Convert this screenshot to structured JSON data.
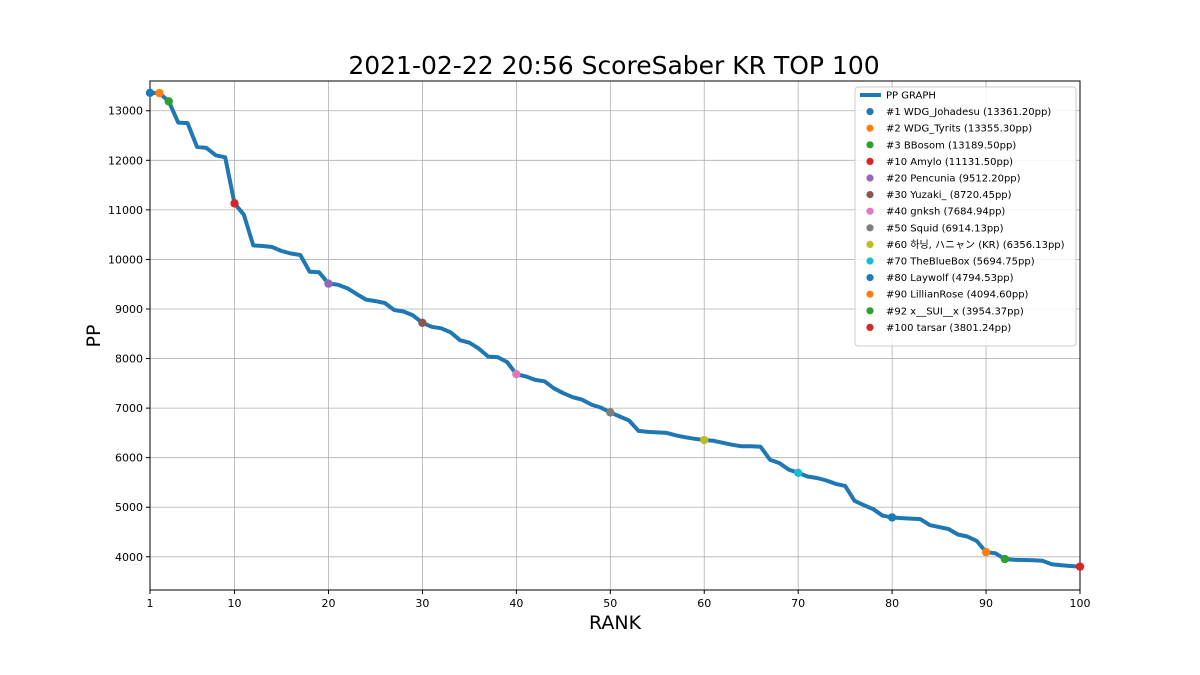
{
  "chart_data": {
    "type": "line",
    "title": "2021-02-22 20:56 ScoreSaber KR TOP 100",
    "xlabel": "RANK",
    "ylabel": "PP",
    "xlim": [
      1,
      100
    ],
    "ylim": [
      3330,
      13600
    ],
    "x_ticks": [
      1,
      10,
      20,
      30,
      40,
      50,
      60,
      70,
      80,
      90,
      100
    ],
    "y_ticks": [
      4000,
      5000,
      6000,
      7000,
      8000,
      9000,
      10000,
      11000,
      12000,
      13000
    ],
    "grid": true,
    "legend_position": "top-right",
    "series": [
      {
        "name": "PP GRAPH",
        "color": "#1f77b4",
        "x": [
          1,
          2,
          3,
          4,
          5,
          6,
          7,
          8,
          9,
          10,
          11,
          12,
          13,
          14,
          15,
          16,
          17,
          18,
          19,
          20,
          21,
          22,
          23,
          24,
          25,
          26,
          27,
          28,
          29,
          30,
          31,
          32,
          33,
          34,
          35,
          36,
          37,
          38,
          39,
          40,
          41,
          42,
          43,
          44,
          45,
          46,
          47,
          48,
          49,
          50,
          51,
          52,
          53,
          54,
          55,
          56,
          57,
          58,
          59,
          60,
          61,
          62,
          63,
          64,
          65,
          66,
          67,
          68,
          69,
          70,
          71,
          72,
          73,
          74,
          75,
          76,
          77,
          78,
          79,
          80,
          81,
          82,
          83,
          84,
          85,
          86,
          87,
          88,
          89,
          90,
          91,
          92,
          93,
          94,
          95,
          96,
          97,
          98,
          99,
          100
        ],
        "y": [
          13361.2,
          13355.3,
          13189.5,
          12760,
          12750,
          12270,
          12250,
          12100,
          12060,
          11131.5,
          10900,
          10280,
          10270,
          10250,
          10170,
          10120,
          10090,
          9750,
          9740,
          9512.2,
          9490,
          9420,
          9300,
          9190,
          9160,
          9120,
          8980,
          8950,
          8870,
          8720.45,
          8640,
          8610,
          8530,
          8370,
          8320,
          8200,
          8040,
          8030,
          7930,
          7684.94,
          7640,
          7570,
          7540,
          7400,
          7300,
          7220,
          7170,
          7070,
          7010,
          6914.13,
          6830,
          6750,
          6540,
          6520,
          6510,
          6500,
          6450,
          6410,
          6380,
          6356.13,
          6340,
          6300,
          6260,
          6230,
          6230,
          6220,
          5960,
          5890,
          5760,
          5694.75,
          5620,
          5590,
          5540,
          5470,
          5430,
          5130,
          5040,
          4960,
          4830,
          4794.53,
          4780,
          4770,
          4760,
          4640,
          4600,
          4560,
          4450,
          4410,
          4320,
          4094.6,
          4070,
          3954.37,
          3940,
          3935,
          3930,
          3920,
          3850,
          3830,
          3815,
          3801.24
        ]
      }
    ],
    "highlights": [
      {
        "label": "#1 WDG_Johadesu (13361.20pp)",
        "x": 1,
        "y": 13361.2,
        "color": "#1f77b4"
      },
      {
        "label": "#2 WDG_Tyrits (13355.30pp)",
        "x": 2,
        "y": 13355.3,
        "color": "#ff7f0e"
      },
      {
        "label": "#3 BBosom (13189.50pp)",
        "x": 3,
        "y": 13189.5,
        "color": "#2ca02c"
      },
      {
        "label": "#10 Amylo (11131.50pp)",
        "x": 10,
        "y": 11131.5,
        "color": "#d62728"
      },
      {
        "label": "#20 Pencunia (9512.20pp)",
        "x": 20,
        "y": 9512.2,
        "color": "#9467bd"
      },
      {
        "label": "#30 Yuzaki_ (8720.45pp)",
        "x": 30,
        "y": 8720.45,
        "color": "#8c564b"
      },
      {
        "label": "#40 gnksh (7684.94pp)",
        "x": 40,
        "y": 7684.94,
        "color": "#e377c2"
      },
      {
        "label": "#50 Squid (6914.13pp)",
        "x": 50,
        "y": 6914.13,
        "color": "#7f7f7f"
      },
      {
        "label": "#60 하닝, ハニャン (KR) (6356.13pp)",
        "x": 60,
        "y": 6356.13,
        "color": "#bcbd22"
      },
      {
        "label": "#70 TheBlueBox (5694.75pp)",
        "x": 70,
        "y": 5694.75,
        "color": "#17becf"
      },
      {
        "label": "#80 Laywolf (4794.53pp)",
        "x": 80,
        "y": 4794.53,
        "color": "#1f77b4"
      },
      {
        "label": "#90 LillianRose (4094.60pp)",
        "x": 90,
        "y": 4094.6,
        "color": "#ff7f0e"
      },
      {
        "label": "#92 x__SUI__x (3954.37pp)",
        "x": 92,
        "y": 3954.37,
        "color": "#2ca02c"
      },
      {
        "label": "#100 tarsar (3801.24pp)",
        "x": 100,
        "y": 3801.24,
        "color": "#d62728"
      }
    ]
  }
}
